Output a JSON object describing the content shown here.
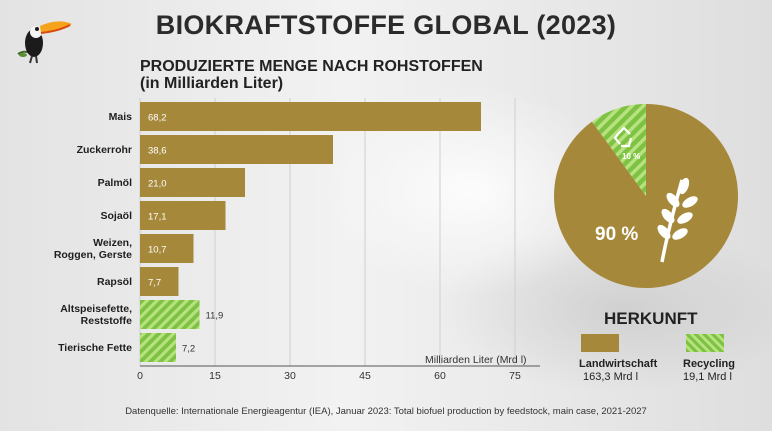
{
  "title": "BIOKRAFTSTOFFE GLOBAL (2023)",
  "subtitle": "PRODUZIERTE MENGE NACH ROHSTOFFEN\n(in Milliarden Liter)",
  "colors": {
    "agriculture": "#a5883a",
    "recycling_green": "#7dc242",
    "recycling_stripe": "#b7e27f"
  },
  "icons": {
    "logo": "toucan-icon",
    "recycle": "recycle-icon",
    "grain": "wheat-icon"
  },
  "chart_data": [
    {
      "type": "bar",
      "orientation": "horizontal",
      "categories": [
        "Mais",
        "Zuckerrohr",
        "Palmöl",
        "Sojaöl",
        "Weizen,\nRoggen, Gerste",
        "Rapsöl",
        "Altspeisefette,\nReststoffe",
        "Tierische Fette"
      ],
      "values": [
        68.2,
        38.6,
        21.0,
        17.1,
        10.7,
        7.7,
        11.9,
        7.2
      ],
      "value_labels": [
        "68,2",
        "38,6",
        "21,0",
        "17,1",
        "10,7",
        "7,7",
        "11,9",
        "7,2"
      ],
      "source_type": [
        "Landwirtschaft",
        "Landwirtschaft",
        "Landwirtschaft",
        "Landwirtschaft",
        "Landwirtschaft",
        "Landwirtschaft",
        "Recycling",
        "Recycling"
      ],
      "xlabel": "Milliarden Liter (Mrd l)",
      "xlim": [
        0,
        80
      ],
      "xticks": [
        0,
        15,
        30,
        45,
        60,
        75
      ],
      "grid": true
    },
    {
      "type": "pie",
      "title": "HERKUNFT",
      "slices": [
        {
          "name": "Landwirtschaft",
          "value": 90,
          "label": "90 %",
          "amount": "163,3 Mrd l"
        },
        {
          "name": "Recycling",
          "value": 10,
          "label": "10 %",
          "amount": "19,1 Mrd l"
        }
      ]
    }
  ],
  "source": "Datenquelle: Internationale Energieagentur (IEA), Januar 2023: Total biofuel production by feedstock, main case, 2021-2027"
}
